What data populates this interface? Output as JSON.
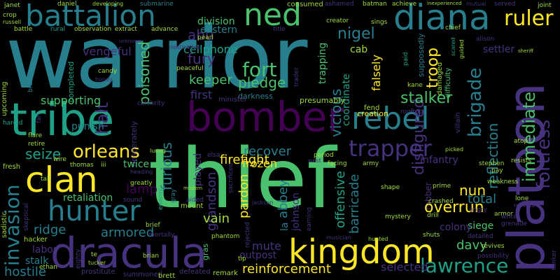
{
  "cloud": {
    "background": "#000000",
    "palette": [
      "#440154",
      "#46327e",
      "#365c8d",
      "#277f8e",
      "#1fa187",
      "#4ac16d",
      "#a0da39",
      "#fde725"
    ],
    "words": {
      "warrior": "warrior",
      "thief": "thief",
      "platoon": "platoon",
      "tribe": "tribe",
      "bomber": "bomber",
      "kingdom": "kingdom",
      "dracula": "dracula",
      "diana": "diana",
      "battalion": "battalion",
      "ned": "ned",
      "clan": "clan",
      "hunter": "hunter",
      "rebel": "rebel",
      "trapper": "trapper",
      "invasion": "invasion",
      "lawrence": "lawrence",
      "ruler": "ruler",
      "fortress": "fortress",
      "immediate": "immediate",
      "orleans": "orleans",
      "fort": "fort",
      "brigade": "brigade",
      "firefight": "firefight",
      "reinforcement": "reinforcement",
      "disfigured": "disfigured",
      "overrun": "overrun",
      "stalker": "stalker",
      "pledge": "pledge",
      "seize": "seize",
      "poisoned": "poisoned",
      "fury": "fury",
      "keeper": "keeper",
      "vicious": "vicious",
      "troop": "troop",
      "nigel": "nigel",
      "abu": "abu",
      "cellphone": "cellphone",
      "vengeful": "vengeful",
      "division": "division",
      "eastern": "eastern",
      "settler": "settler",
      "reflection": "reflection",
      "furious": "furious",
      "supporting": "supporting",
      "halt": "halt",
      "punish": "punish",
      "first": "first",
      "recover": "recover",
      "frozen": "frozen",
      "nun": "nun",
      "total": "total",
      "offensive": "offensive",
      "barricade": "barricade",
      "pardon": "pardon",
      "grandson": "grandson",
      "vain": "vain",
      "mute": "mute",
      "selected": "selected",
      "davy": "davy",
      "ridge": "ridge",
      "armored": "armored",
      "hostile": "hostile",
      "siege": "siege",
      "colony": "colony",
      "abbey": "abbey",
      "infantry": "infantry",
      "lamp": "lamp",
      "twice": "twice",
      "retaliation": "retaliation",
      "falsely": "falsely",
      "coordinate": "coordinate",
      "trapping": "trapping",
      "cab": "cab",
      "consumed": "consumed",
      "minister": "minister",
      "darkness": "darkness",
      "presumably": "presumably",
      "creation": "creation",
      "fend": "fend",
      "labor": "labor",
      "stalk": "stalk",
      "hacker": "hacker",
      "outpost": "outpost",
      "remark": "remark",
      "defeated": "defeated",
      "summoned": "summoned",
      "prostitute": "prostitute",
      "brett": "brett",
      "daniel": "daniel",
      "janet": "janet",
      "crop": "crop",
      "russell": "russell",
      "battle": "battle",
      "rural": "rural",
      "observation": "observation",
      "extract": "extract",
      "advance": "advance",
      "title": "title",
      "sings": "sings",
      "creator": "creator",
      "chief": "chief",
      "alison": "alison",
      "served": "served",
      "joint": "joint",
      "achieve": "achieve",
      "mutual": "mutual",
      "inexperienced": "inexperienced",
      "ashamed": "ashamed",
      "batman": "batman",
      "submarine": "submarine",
      "developing": "developing",
      "pearl": "pearl",
      "destination": "destination",
      "peaceful": "peaceful",
      "candy": "candy",
      "honey": "honey",
      "completed": "completed",
      "upcoming": "upcoming",
      "celebrity": "celebrity",
      "desperately": "desperately",
      "harold": "harold",
      "fresh": "fresh",
      "flare": "flare",
      "retire": "retire",
      "thomas": "thomas",
      "iii": "iii",
      "tall": "tall",
      "wire": "wire",
      "greatly": "greatly",
      "heading": "heading",
      "sound": "sound",
      "enemy": "enemy",
      "modern": "modern",
      "mount": "mount",
      "aided": "aided",
      "brief": "brief",
      "mortally": "mortally",
      "brian": "brian",
      "phantom": "phantom",
      "musician": "musician",
      "mystery": "mystery",
      "drill": "drill",
      "crashed": "crashed",
      "shuts": "shuts",
      "detailed": "detailed",
      "revives": "revives",
      "possibility": "possibility",
      "angry": "angry",
      "armor": "armor",
      "writer": "writer",
      "grenade": "grenade",
      "lone": "lone",
      "reflects": "reflects",
      "weakness": "weakness",
      "pay": "pay",
      "stephen": "stephen",
      "resists": "resists",
      "atop": "atop",
      "prime": "prime",
      "shape": "shape",
      "army": "army",
      "facing": "facing",
      "west": "west",
      "period": "period",
      "elsa": "elsa",
      "played": "played",
      "earning": "earning",
      "kane": "kane",
      "paid": "paid",
      "supposedly": "supposedly",
      "difficulty": "difficulty",
      "villain": "villain",
      "damaged": "damaged",
      "rooftop": "rooftop",
      "picked": "picked",
      "luring": "luring",
      "sadistic": "sadistic",
      "ethan": "ethan",
      "tip": "tip",
      "hunted": "hunted",
      "rejected": "rejected",
      "tucker": "tucker",
      "trader": "trader",
      "te": "te",
      "eighty": "eighty",
      "tanker": "tanker",
      "gras": "gras",
      "sacrificed": "sacrificed",
      "gray": "gray",
      "skeptical": "skeptical",
      "branch": "branch",
      "sheriff": "sheriff",
      "unknown": "unknown",
      "guided": "guided",
      "jackson": "jackson",
      "johnson": "johnson",
      "la": "la",
      "robber": "robber",
      "fan": "fan",
      "scared": "scared"
    }
  }
}
